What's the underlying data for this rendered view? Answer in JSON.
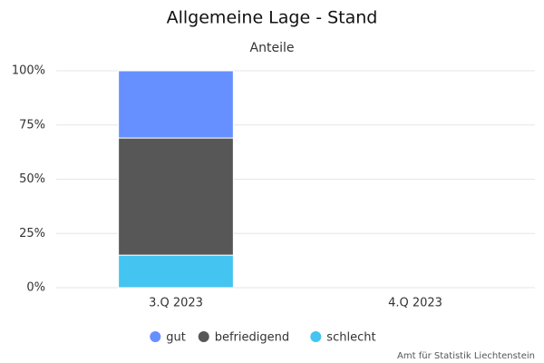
{
  "chart_data": {
    "type": "stacked-bar",
    "title": "Allgemeine Lage - Stand",
    "subtitle": "Anteile",
    "categories": [
      "3.Q 2023",
      "4.Q 2023"
    ],
    "series": [
      {
        "name": "gut",
        "color": "#6690ff",
        "values": [
          31,
          null
        ]
      },
      {
        "name": "befriedigend",
        "color": "#575757",
        "values": [
          54,
          null
        ]
      },
      {
        "name": "schlecht",
        "color": "#44c4f0",
        "values": [
          15,
          null
        ]
      }
    ],
    "ylim": [
      0,
      100
    ],
    "yticks": [
      {
        "value": 0,
        "label": "0%"
      },
      {
        "value": 25,
        "label": "25%"
      },
      {
        "value": 50,
        "label": "50%"
      },
      {
        "value": 75,
        "label": "75%"
      },
      {
        "value": 100,
        "label": "100%"
      }
    ],
    "grid": true,
    "legend": "bottom",
    "credit": "Amt für Statistik Liechtenstein"
  }
}
